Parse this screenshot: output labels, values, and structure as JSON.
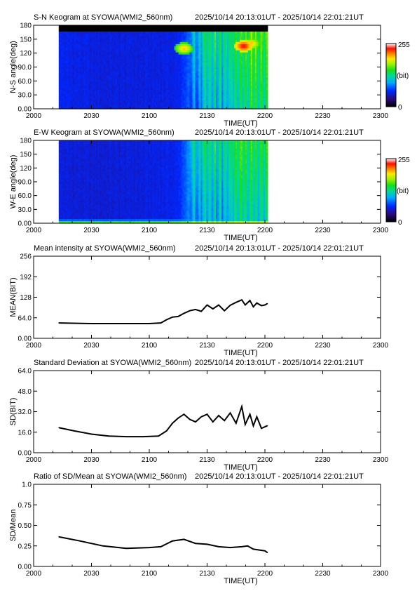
{
  "panels": [
    {
      "id": "sn",
      "title": "S-N Keogram at SYOWA(WMI2_560nm)",
      "time_range": "2025/10/14 20:13:01UT - 2025/10/14 22:01:21UT",
      "xlabel": "TIME(UT)",
      "ylabel": "N-S angle(deg)",
      "colorbar": {
        "max_label": "255",
        "min_label": "0",
        "unit_label": "(bit)"
      }
    },
    {
      "id": "ew",
      "title": "E-W Keogram at SYOWA(WMI2_560nm)",
      "time_range": "2025/10/14 20:13:01UT - 2025/10/14 22:01:21UT",
      "xlabel": "TIME(UT)",
      "ylabel": "W-E angle(deg)",
      "colorbar": {
        "max_label": "255",
        "min_label": "0",
        "unit_label": "(bit)"
      }
    },
    {
      "id": "mean",
      "title": "Mean intensity at SYOWA(WMI2_560nm)",
      "time_range": "2025/10/14 20:13:01UT - 2025/10/14 22:01:21UT",
      "xlabel": "TIME(UT)",
      "ylabel": "MEAN(BIT)"
    },
    {
      "id": "sd",
      "title": "Standard Deviation at SYOWA(WMI2_560nm)",
      "time_range": "2025/10/14 20:13:01UT - 2025/10/14 22:01:21UT",
      "xlabel": "TIME(UT)",
      "ylabel": "SD(BIT)"
    },
    {
      "id": "ratio",
      "title": "Ratio of SD/Mean at SYOWA(WMI2_560nm)",
      "time_range": "2025/10/14 20:13:01UT - 2025/10/14 22:01:21UT",
      "xlabel": "TIME(UT)",
      "ylabel": "SD/Mean"
    }
  ],
  "chart_data": [
    {
      "type": "heatmap",
      "title": "S-N Keogram at SYOWA(WMI2_560nm)",
      "xlabel": "TIME(UT)",
      "ylabel": "N-S angle(deg)",
      "x_ticks": [
        "2000",
        "2030",
        "2100",
        "2130",
        "2200",
        "2230",
        "2300"
      ],
      "y_ticks": [
        "0.00",
        "30.0",
        "60.0",
        "90.0",
        "120",
        "150",
        "180"
      ],
      "x_range_ut": [
        "20:00",
        "23:00"
      ],
      "ylim": [
        0,
        180
      ],
      "data_span_ut": [
        "20:13:01",
        "22:01:21"
      ],
      "colorscale_range": [
        0,
        255
      ],
      "profile_bit": [
        [
          20.22,
          60
        ],
        [
          20.5,
          55
        ],
        [
          21.0,
          55
        ],
        [
          21.25,
          58
        ],
        [
          21.38,
          85
        ],
        [
          21.5,
          120
        ],
        [
          21.65,
          115
        ],
        [
          21.8,
          125
        ],
        [
          21.9,
          140
        ],
        [
          22.02,
          125
        ]
      ],
      "bright_spots": [
        {
          "time": "21:18",
          "angle": 130,
          "bit": 210
        },
        {
          "time": "21:49",
          "angle": 135,
          "bit": 245
        },
        {
          "time": "21:53",
          "angle": 140,
          "bit": 210
        }
      ],
      "top_band_angle_range": [
        168,
        180
      ]
    },
    {
      "type": "heatmap",
      "title": "E-W Keogram at SYOWA(WMI2_560nm)",
      "xlabel": "TIME(UT)",
      "ylabel": "W-E angle(deg)",
      "x_ticks": [
        "2000",
        "2030",
        "2100",
        "2130",
        "2200",
        "2230",
        "2300"
      ],
      "y_ticks": [
        "0.00",
        "30.0",
        "60.0",
        "90.0",
        "120",
        "150",
        "180"
      ],
      "x_range_ut": [
        "20:00",
        "23:00"
      ],
      "ylim": [
        0,
        180
      ],
      "data_span_ut": [
        "20:13:01",
        "22:01:21"
      ],
      "colorscale_range": [
        0,
        255
      ],
      "profile_bit": [
        [
          20.22,
          55
        ],
        [
          20.5,
          52
        ],
        [
          21.0,
          55
        ],
        [
          21.25,
          60
        ],
        [
          21.38,
          100
        ],
        [
          21.5,
          115
        ],
        [
          21.65,
          110
        ],
        [
          21.8,
          125
        ],
        [
          21.9,
          120
        ],
        [
          22.02,
          115
        ]
      ],
      "low_angle_band": {
        "angle_range": [
          0,
          10
        ],
        "bit": 170
      }
    },
    {
      "type": "line",
      "title": "Mean intensity at SYOWA(WMI2_560nm)",
      "xlabel": "TIME(UT)",
      "ylabel": "MEAN(BIT)",
      "x_ticks": [
        "2000",
        "2030",
        "2100",
        "2130",
        "2200",
        "2230",
        "2300"
      ],
      "y_ticks": [
        "0.00",
        "64.0",
        "128",
        "192",
        "256"
      ],
      "ylim": [
        0,
        256
      ],
      "x": [
        20.22,
        20.5,
        20.8,
        21.0,
        21.1,
        21.15,
        21.2,
        21.25,
        21.3,
        21.35,
        21.4,
        21.45,
        21.5,
        21.55,
        21.6,
        21.65,
        21.7,
        21.75,
        21.8,
        21.83,
        21.87,
        21.9,
        21.93,
        21.97,
        22.0,
        22.02
      ],
      "y": [
        48,
        46,
        46,
        46,
        48,
        58,
        66,
        68,
        78,
        86,
        90,
        84,
        104,
        92,
        104,
        86,
        103,
        112,
        120,
        104,
        118,
        98,
        110,
        102,
        104,
        108
      ]
    },
    {
      "type": "line",
      "title": "Standard Deviation at SYOWA(WMI2_560nm)",
      "xlabel": "TIME(UT)",
      "ylabel": "SD(BIT)",
      "x_ticks": [
        "2000",
        "2030",
        "2100",
        "2130",
        "2200",
        "2230",
        "2300"
      ],
      "y_ticks": [
        "0.00",
        "16.0",
        "32.0",
        "48.0",
        "64.0"
      ],
      "ylim": [
        0,
        64
      ],
      "x": [
        20.22,
        20.35,
        20.5,
        20.65,
        20.8,
        20.95,
        21.08,
        21.15,
        21.2,
        21.25,
        21.3,
        21.35,
        21.4,
        21.45,
        21.5,
        21.55,
        21.6,
        21.65,
        21.7,
        21.75,
        21.8,
        21.83,
        21.87,
        21.9,
        21.93,
        21.97,
        22.02
      ],
      "y": [
        19.5,
        17,
        14.5,
        13,
        12.5,
        12.5,
        13,
        17,
        23,
        27,
        30,
        26,
        24,
        28,
        30,
        24,
        29,
        25,
        31,
        23,
        36,
        22,
        30,
        21,
        28,
        19,
        21
      ]
    },
    {
      "type": "line",
      "title": "Ratio of SD/Mean at SYOWA(WMI2_560nm)",
      "xlabel": "TIME(UT)",
      "ylabel": "SD/Mean",
      "x_ticks": [
        "2000",
        "2030",
        "2100",
        "2130",
        "2200",
        "2230",
        "2300"
      ],
      "y_ticks": [
        "0.00",
        "0.25",
        "0.50",
        "0.75",
        "1.0"
      ],
      "ylim": [
        0,
        1
      ],
      "x": [
        20.22,
        20.4,
        20.6,
        20.8,
        21.0,
        21.1,
        21.2,
        21.3,
        21.4,
        21.5,
        21.6,
        21.7,
        21.8,
        21.85,
        21.9,
        22.0,
        22.02
      ],
      "y": [
        0.36,
        0.31,
        0.25,
        0.22,
        0.23,
        0.24,
        0.31,
        0.33,
        0.28,
        0.27,
        0.24,
        0.23,
        0.24,
        0.25,
        0.21,
        0.19,
        0.17
      ]
    }
  ]
}
